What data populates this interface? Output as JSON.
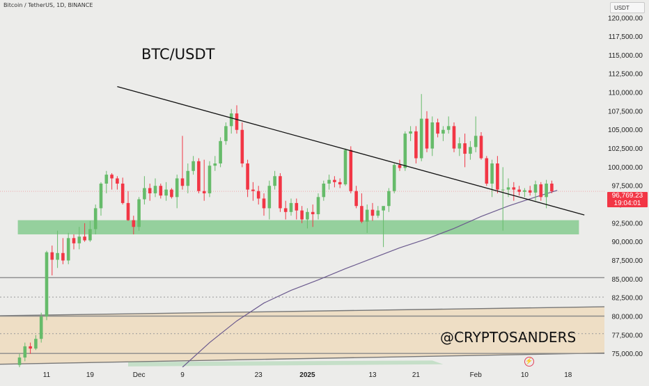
{
  "header": {
    "title": "Bitcoin / TetherUS, 1D, BINANCE",
    "currency": "USDT"
  },
  "price_tag": {
    "price": "96,769.23",
    "countdown": "19:04:01",
    "color": "#f23645"
  },
  "annotations": {
    "symbol": "BTC/USDT",
    "watermark": "@CRYPTOSANDERS"
  },
  "icons": {
    "bottom": "lightning-icon"
  },
  "colors": {
    "up": "#66bb6a",
    "down": "#f23645",
    "support_zone": "#7fc98a",
    "demand_zone": "#efd9b8",
    "trendline": "#111111",
    "moving_average": "#6b5a8e",
    "horizontal_line": "#8a8a8a",
    "background": "#ececea"
  },
  "chart_data": {
    "type": "candlestick",
    "title": "",
    "xlabel": "",
    "ylabel": "",
    "ylim": [
      73200,
      122400
    ],
    "y_ticks": [
      {
        "value": 75000,
        "label": "75,000.00"
      },
      {
        "value": 77500,
        "label": "77,500.00"
      },
      {
        "value": 80000,
        "label": "80,000.00"
      },
      {
        "value": 82500,
        "label": "82,500.00"
      },
      {
        "value": 85000,
        "label": "85,000.00"
      },
      {
        "value": 87500,
        "label": "87,500.00"
      },
      {
        "value": 90000,
        "label": "90,000.00"
      },
      {
        "value": 92500,
        "label": "92,500.00"
      },
      {
        "value": 95000,
        "label": "95,000.00"
      },
      {
        "value": 97500,
        "label": "97,500.00"
      },
      {
        "value": 100000,
        "label": "100,000.00"
      },
      {
        "value": 102500,
        "label": "102,500.00"
      },
      {
        "value": 105000,
        "label": "105,000.00"
      },
      {
        "value": 107500,
        "label": "107,500.00"
      },
      {
        "value": 110000,
        "label": "110,000.00"
      },
      {
        "value": 112500,
        "label": "112,500.00"
      },
      {
        "value": 115000,
        "label": "115,000.00"
      },
      {
        "value": 117500,
        "label": "117,500.00"
      },
      {
        "value": 120000,
        "label": "120,000.00"
      }
    ],
    "x_ticks": [
      {
        "index": 5,
        "label": "11",
        "bold": false
      },
      {
        "index": 13,
        "label": "19",
        "bold": false
      },
      {
        "index": 22,
        "label": "Dec",
        "bold": false
      },
      {
        "index": 30,
        "label": "9",
        "bold": false
      },
      {
        "index": 44,
        "label": "23",
        "bold": false
      },
      {
        "index": 53,
        "label": "2025",
        "bold": true
      },
      {
        "index": 65,
        "label": "13",
        "bold": false
      },
      {
        "index": 73,
        "label": "21",
        "bold": false
      },
      {
        "index": 84,
        "label": "Feb",
        "bold": false
      },
      {
        "index": 93,
        "label": "10",
        "bold": false
      },
      {
        "index": 101,
        "label": "18",
        "bold": false
      }
    ],
    "candles": [
      [
        73500,
        75000,
        72800,
        74500
      ],
      [
        74500,
        76500,
        74000,
        76000
      ],
      [
        76000,
        76500,
        75000,
        75700
      ],
      [
        75700,
        77500,
        75500,
        77000
      ],
      [
        77000,
        80500,
        76500,
        80000
      ],
      [
        80000,
        88800,
        79500,
        88600
      ],
      [
        88600,
        89500,
        85500,
        87600
      ],
      [
        87600,
        91500,
        86500,
        88500
      ],
      [
        88500,
        90500,
        87000,
        87500
      ],
      [
        87500,
        91200,
        87000,
        90500
      ],
      [
        90500,
        91000,
        89000,
        89800
      ],
      [
        89800,
        92000,
        89000,
        90700
      ],
      [
        90700,
        92500,
        90000,
        90200
      ],
      [
        90200,
        92800,
        90000,
        91700
      ],
      [
        91700,
        95000,
        91000,
        94500
      ],
      [
        94500,
        98000,
        93500,
        97800
      ],
      [
        97800,
        99500,
        96500,
        99000
      ],
      [
        99000,
        99200,
        97000,
        98500
      ],
      [
        98500,
        98800,
        97000,
        97800
      ],
      [
        97800,
        98600,
        95000,
        95200
      ],
      [
        95200,
        96800,
        92800,
        92900
      ],
      [
        92900,
        93500,
        91000,
        92000
      ],
      [
        92000,
        96000,
        91500,
        95700
      ],
      [
        95700,
        98800,
        95000,
        97200
      ],
      [
        97200,
        97800,
        95500,
        96500
      ],
      [
        96500,
        98500,
        96000,
        97500
      ],
      [
        97500,
        97800,
        95800,
        96200
      ],
      [
        96200,
        98000,
        95500,
        97000
      ],
      [
        97000,
        97200,
        95800,
        96000
      ],
      [
        96000,
        99000,
        94500,
        98500
      ],
      [
        98500,
        104200,
        97000,
        97500
      ],
      [
        97500,
        100500,
        96500,
        99500
      ],
      [
        99500,
        101500,
        99000,
        100800
      ],
      [
        100800,
        101200,
        96500,
        96800
      ],
      [
        96800,
        101000,
        95500,
        96500
      ],
      [
        96500,
        100800,
        96000,
        100200
      ],
      [
        100200,
        101500,
        99500,
        100500
      ],
      [
        100500,
        104000,
        100000,
        103500
      ],
      [
        103500,
        106000,
        103000,
        105500
      ],
      [
        105500,
        107800,
        104500,
        107200
      ],
      [
        107200,
        108300,
        104500,
        105000
      ],
      [
        105000,
        106000,
        100000,
        100500
      ],
      [
        100500,
        101000,
        96000,
        97000
      ],
      [
        97000,
        98000,
        95500,
        96800
      ],
      [
        96800,
        97500,
        95000,
        95800
      ],
      [
        95800,
        96500,
        93500,
        94500
      ],
      [
        94500,
        98200,
        93000,
        97500
      ],
      [
        97500,
        99500,
        97000,
        98800
      ],
      [
        98800,
        99200,
        94000,
        94500
      ],
      [
        94500,
        95500,
        93000,
        94000
      ],
      [
        94000,
        95800,
        93500,
        95200
      ],
      [
        95200,
        95800,
        93000,
        94200
      ],
      [
        94200,
        94800,
        92500,
        93000
      ],
      [
        93000,
        94500,
        91800,
        94000
      ],
      [
        94000,
        95000,
        92000,
        93700
      ],
      [
        93700,
        96500,
        93000,
        96000
      ],
      [
        96000,
        98200,
        95500,
        97800
      ],
      [
        97800,
        99000,
        97000,
        98300
      ],
      [
        98300,
        98800,
        97300,
        98000
      ],
      [
        98000,
        98500,
        97200,
        97700
      ],
      [
        97700,
        102500,
        97500,
        102300
      ],
      [
        102300,
        102800,
        96500,
        96800
      ],
      [
        96800,
        97500,
        94500,
        94800
      ],
      [
        94800,
        96500,
        92500,
        92700
      ],
      [
        92700,
        95000,
        91200,
        94300
      ],
      [
        94300,
        95200,
        92800,
        93500
      ],
      [
        93500,
        94800,
        93200,
        94200
      ],
      [
        94200,
        94500,
        89300,
        94800
      ],
      [
        94800,
        97200,
        94000,
        96800
      ],
      [
        96800,
        100500,
        96500,
        100300
      ],
      [
        100300,
        101000,
        99500,
        99900
      ],
      [
        99900,
        104800,
        99500,
        104500
      ],
      [
        104500,
        105500,
        103500,
        104800
      ],
      [
        104800,
        105500,
        100500,
        101200
      ],
      [
        101200,
        109800,
        100800,
        106500
      ],
      [
        106500,
        107500,
        102000,
        102500
      ],
      [
        102500,
        106800,
        101500,
        106000
      ],
      [
        106000,
        106500,
        104000,
        104500
      ],
      [
        104500,
        105500,
        103500,
        105000
      ],
      [
        105000,
        106800,
        104500,
        105500
      ],
      [
        105500,
        106000,
        102000,
        102500
      ],
      [
        102500,
        104000,
        101500,
        103200
      ],
      [
        103200,
        104500,
        100000,
        101800
      ],
      [
        101800,
        103500,
        101000,
        102700
      ],
      [
        102700,
        106800,
        102000,
        104200
      ],
      [
        104200,
        104700,
        101000,
        101200
      ],
      [
        101200,
        101500,
        97500,
        97800
      ],
      [
        97800,
        101000,
        96000,
        100500
      ],
      [
        100500,
        101500,
        96500,
        97000
      ],
      [
        97000,
        100000,
        91500,
        97000
      ],
      [
        97000,
        98500,
        96000,
        97300
      ],
      [
        97300,
        98000,
        95500,
        97000
      ],
      [
        97000,
        97500,
        96200,
        96700
      ],
      [
        96700,
        97200,
        96000,
        96900
      ],
      [
        96900,
        97500,
        96200,
        96600
      ],
      [
        96600,
        98200,
        95500,
        97700
      ],
      [
        97700,
        98000,
        95500,
        96000
      ],
      [
        96000,
        98300,
        94500,
        97800
      ],
      [
        97800,
        98200,
        96500,
        96769
      ]
    ],
    "support_zone": {
      "y1": 91000,
      "y2": 92900,
      "from_index": 2,
      "to_index": 103
    },
    "trendline": {
      "from_index": 18,
      "from_value": 110800,
      "to_index": 104,
      "to_value": 93600
    },
    "moving_average": {
      "name": "",
      "points": [
        [
          30,
          73200
        ],
        [
          35,
          76500
        ],
        [
          40,
          79400
        ],
        [
          45,
          81800
        ],
        [
          50,
          83500
        ],
        [
          55,
          84900
        ],
        [
          60,
          86400
        ],
        [
          65,
          87800
        ],
        [
          70,
          89200
        ],
        [
          75,
          90400
        ],
        [
          80,
          91800
        ],
        [
          85,
          93400
        ],
        [
          90,
          94800
        ],
        [
          95,
          96000
        ],
        [
          99,
          96900
        ]
      ]
    },
    "horizontal_lines": [
      {
        "y": 85200,
        "style": "solid"
      },
      {
        "y": 82600,
        "style": "dotted"
      },
      {
        "y": 80050,
        "style": "solid"
      },
      {
        "y": 77700,
        "style": "dotted"
      },
      {
        "y": 75050,
        "style": "solid"
      }
    ],
    "demand_zone": {
      "x_from_index": 0,
      "x_to_index": 108,
      "y1_left": 80100,
      "y1_right": 81300,
      "y2_left": 73600,
      "y2_right": 75100
    },
    "last_price_line": 96769
  }
}
